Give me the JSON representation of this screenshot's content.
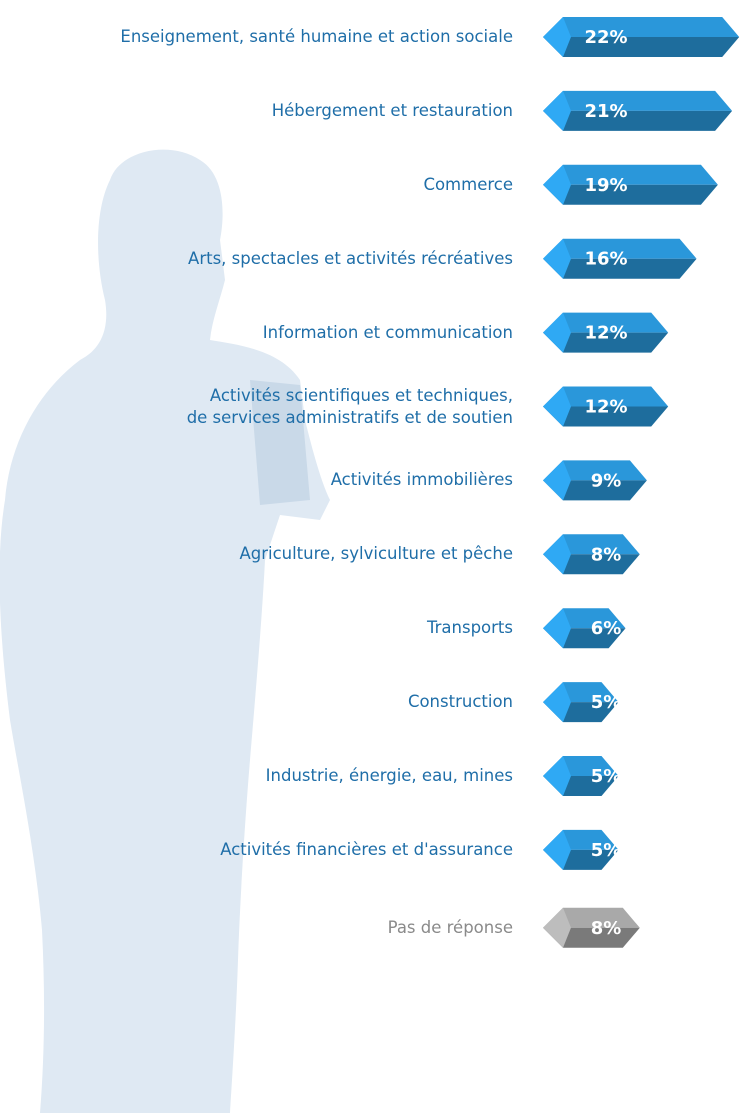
{
  "chart_data": {
    "type": "bar",
    "categories": [
      "Enseignement, santé humaine et action sociale",
      "Hébergement et restauration",
      "Commerce",
      "Arts, spectacles et activités récréatives",
      "Information et communication",
      "Activités scientifiques et techniques,\nde services administratifs et de soutien",
      "Activités immobilières",
      "Agriculture, sylviculture et pêche",
      "Transports",
      "Construction",
      "Industrie, énergie, eau, mines",
      "Activités financières et d'assurance",
      "Pas de réponse"
    ],
    "values": [
      22,
      21,
      19,
      16,
      12,
      12,
      9,
      8,
      6,
      5,
      5,
      5,
      8
    ],
    "value_labels": [
      "22%",
      "21%",
      "19%",
      "16%",
      "12%",
      "12%",
      "9%",
      "8%",
      "6%",
      "5%",
      "5%",
      "5%",
      "8%"
    ],
    "colors": [
      "#2a97da",
      "#2a97da",
      "#2a97da",
      "#2a97da",
      "#2a97da",
      "#2a97da",
      "#2a97da",
      "#2a97da",
      "#2a97da",
      "#2a97da",
      "#2a97da",
      "#2a97da",
      "#a9a9a9"
    ],
    "label_colors": [
      "#1f6ea8",
      "#1f6ea8",
      "#1f6ea8",
      "#1f6ea8",
      "#1f6ea8",
      "#1f6ea8",
      "#1f6ea8",
      "#1f6ea8",
      "#1f6ea8",
      "#1f6ea8",
      "#1f6ea8",
      "#1f6ea8",
      "#8a8a8a"
    ]
  }
}
